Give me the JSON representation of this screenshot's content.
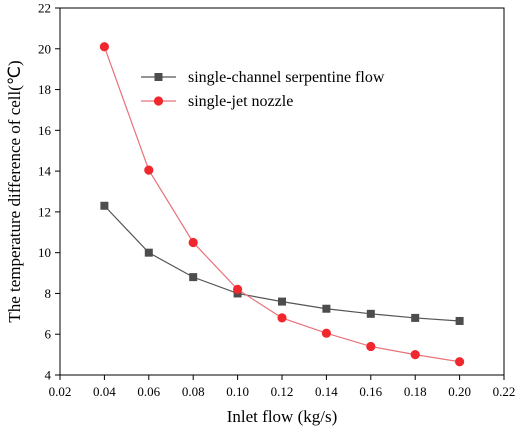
{
  "chart_data": {
    "type": "line",
    "title": "",
    "xlabel": "Inlet flow (kg/s)",
    "ylabel": "The temperature difference of cell(℃)",
    "xlim": [
      0.02,
      0.22
    ],
    "ylim": [
      4,
      22
    ],
    "xticks": [
      "0.02",
      "0.04",
      "0.06",
      "0.08",
      "0.10",
      "0.12",
      "0.14",
      "0.16",
      "0.18",
      "0.20",
      "0.22"
    ],
    "yticks": [
      "4",
      "6",
      "8",
      "10",
      "12",
      "14",
      "16",
      "18",
      "20",
      "22"
    ],
    "x": [
      0.04,
      0.06,
      0.08,
      0.1,
      0.12,
      0.14,
      0.16,
      0.18,
      0.2
    ],
    "series": [
      {
        "name": "single-channel serpentine flow",
        "marker": "square",
        "line_color": "#555555",
        "marker_color": "#4d4d4d",
        "values": [
          12.3,
          10.0,
          8.8,
          8.0,
          7.6,
          7.25,
          7.0,
          6.8,
          6.65
        ]
      },
      {
        "name": "single-jet nozzle",
        "marker": "circle",
        "line_color": "#e8737a",
        "marker_color": "#f0282d",
        "values": [
          20.1,
          14.05,
          10.5,
          8.2,
          6.8,
          6.05,
          5.4,
          5.0,
          4.65
        ]
      }
    ],
    "legend_position": "top-right",
    "grid": false
  }
}
